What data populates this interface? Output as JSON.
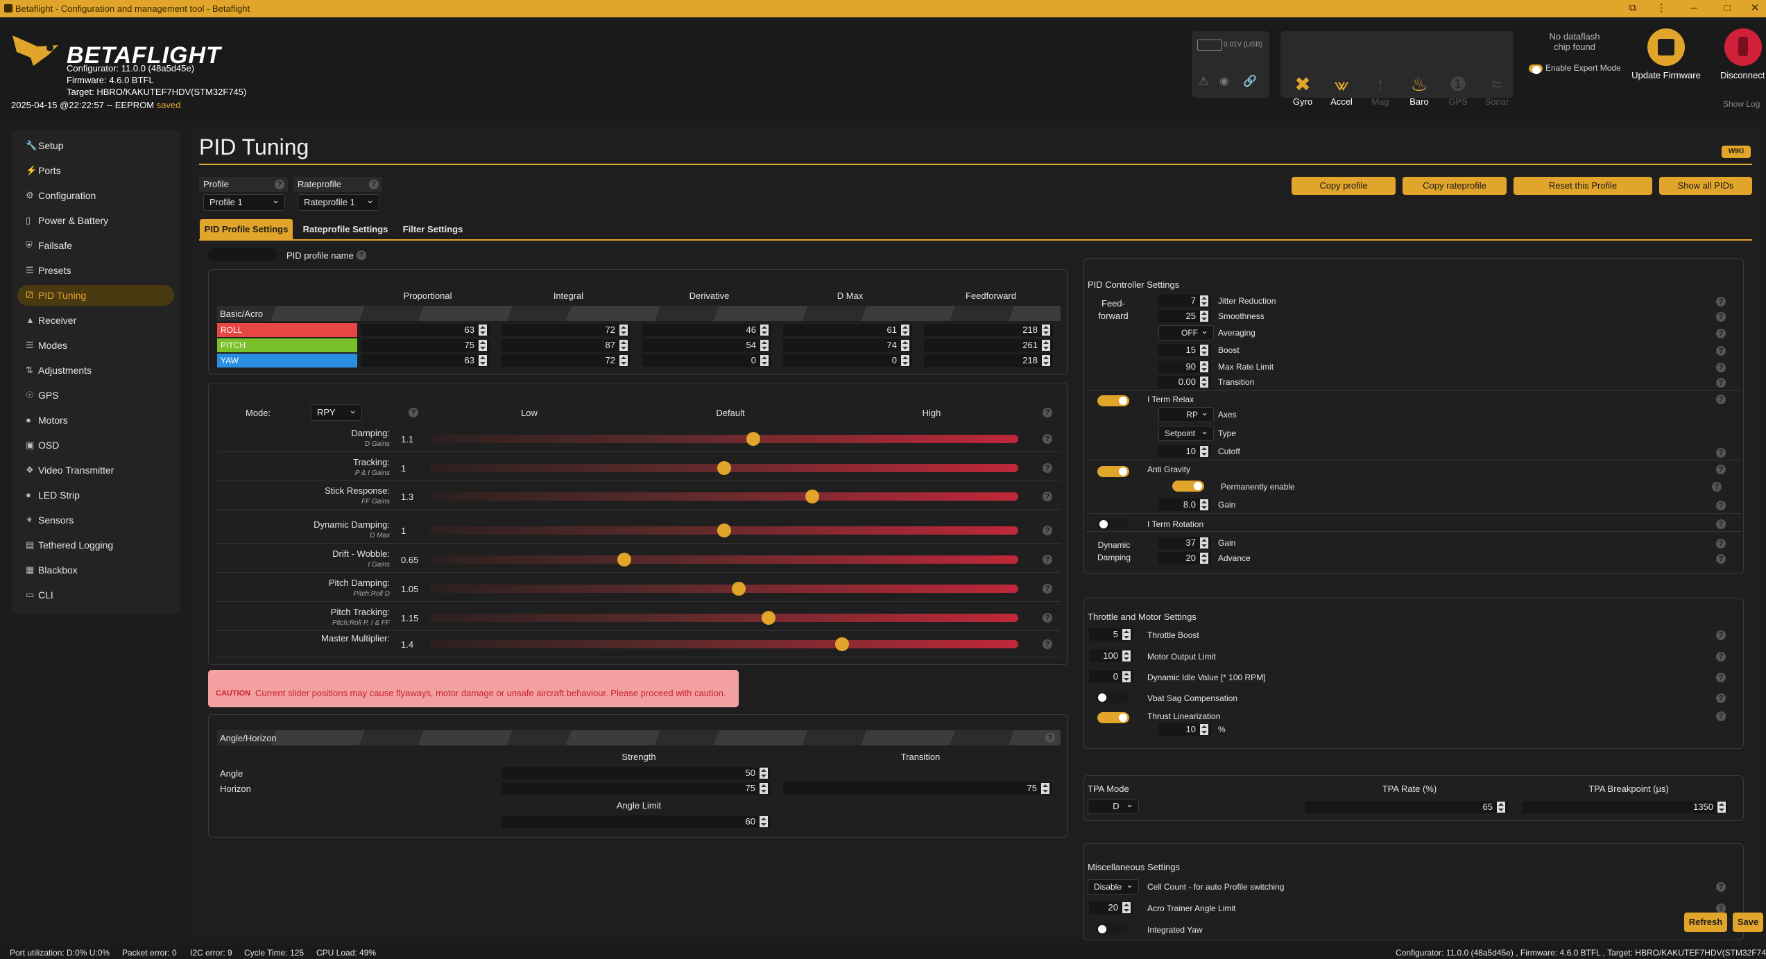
{
  "window": {
    "title": "Betaflight - Configuration and management tool - Betaflight"
  },
  "header": {
    "logo": "BETAFLIGHT",
    "configurator": "Configurator: 11.0.0 (48a5d45e)",
    "firmware": "Firmware: 4.6.0 BTFL",
    "target": "Target: HBRO/KAKUTEF7HDV(STM32F745)",
    "datetime": "2025-04-15 @22:22:57 -- EEPROM",
    "saved": "saved",
    "battery": "0.01V (USB)",
    "sensors": [
      {
        "name": "Gyro",
        "icon": "gyro-icon",
        "active": true
      },
      {
        "name": "Accel",
        "icon": "accel-icon",
        "active": true
      },
      {
        "name": "Mag",
        "icon": "mag-icon",
        "active": false
      },
      {
        "name": "Baro",
        "icon": "baro-icon",
        "active": true
      },
      {
        "name": "GPS",
        "icon": "gps-icon",
        "active": false
      },
      {
        "name": "Sonar",
        "icon": "sonar-icon",
        "active": false
      }
    ],
    "dataflash": "No dataflash chip found",
    "expert_mode": "Enable Expert Mode",
    "update_firmware": "Update Firmware",
    "disconnect": "Disconnect",
    "show_log": "Show Log"
  },
  "sidebar": {
    "items": [
      {
        "label": "Setup",
        "icon": "wrench-icon"
      },
      {
        "label": "Ports",
        "icon": "plug-icon"
      },
      {
        "label": "Configuration",
        "icon": "gear-icon"
      },
      {
        "label": "Power & Battery",
        "icon": "battery-icon"
      },
      {
        "label": "Failsafe",
        "icon": "shield-icon"
      },
      {
        "label": "Presets",
        "icon": "presets-icon"
      },
      {
        "label": "PID Tuning",
        "icon": "pid-icon",
        "active": true
      },
      {
        "label": "Receiver",
        "icon": "receiver-icon"
      },
      {
        "label": "Modes",
        "icon": "modes-icon"
      },
      {
        "label": "Adjustments",
        "icon": "adjust-icon"
      },
      {
        "label": "GPS",
        "icon": "gps-icon"
      },
      {
        "label": "Motors",
        "icon": "motor-icon"
      },
      {
        "label": "OSD",
        "icon": "osd-icon"
      },
      {
        "label": "Video Transmitter",
        "icon": "vtx-icon"
      },
      {
        "label": "LED Strip",
        "icon": "led-icon"
      },
      {
        "label": "Sensors",
        "icon": "sensors-icon"
      },
      {
        "label": "Tethered Logging",
        "icon": "log-icon"
      },
      {
        "label": "Blackbox",
        "icon": "blackbox-icon"
      },
      {
        "label": "CLI",
        "icon": "cli-icon"
      }
    ]
  },
  "page": {
    "title": "PID Tuning",
    "wiki": "WIKI",
    "profile_label": "Profile",
    "profile_value": "Profile 1",
    "rateprofile_label": "Rateprofile",
    "rateprofile_value": "Rateprofile 1",
    "buttons": {
      "copy_profile": "Copy profile",
      "copy_rateprofile": "Copy rateprofile",
      "reset_profile": "Reset this Profile",
      "show_all_pids": "Show all PIDs",
      "refresh": "Refresh",
      "save": "Save"
    },
    "tabs": [
      "PID Profile Settings",
      "Rateprofile Settings",
      "Filter Settings"
    ],
    "pid_profile_name_label": "PID profile name"
  },
  "pid_table": {
    "columns": [
      "Proportional",
      "Integral",
      "Derivative",
      "D Max",
      "Feedforward"
    ],
    "section": "Basic/Acro",
    "rows": [
      {
        "axis": "ROLL",
        "color": "#e84545",
        "values": [
          "63",
          "72",
          "46",
          "61",
          "218"
        ]
      },
      {
        "axis": "PITCH",
        "color": "#7ac02a",
        "values": [
          "75",
          "87",
          "54",
          "74",
          "261"
        ]
      },
      {
        "axis": "YAW",
        "color": "#2a8ee0",
        "values": [
          "63",
          "72",
          "0",
          "0",
          "218"
        ]
      }
    ]
  },
  "sliders": {
    "mode_label": "Mode:",
    "mode_value": "RPY",
    "low": "Low",
    "default": "Default",
    "high": "High",
    "items": [
      {
        "label": "Damping:",
        "sub": "D Gains",
        "value": "1.1",
        "pos": 0.55
      },
      {
        "label": "Tracking:",
        "sub": "P & I Gains",
        "value": "1",
        "pos": 0.5
      },
      {
        "label": "Stick Response:",
        "sub": "FF Gains",
        "value": "1.3",
        "pos": 0.65
      },
      {
        "label": "Dynamic Damping:",
        "sub": "D Max",
        "value": "1",
        "pos": 0.5
      },
      {
        "label": "Drift - Wobble:",
        "sub": "I Gains",
        "value": "0.65",
        "pos": 0.33
      },
      {
        "label": "Pitch Damping:",
        "sub": "Pitch:Roll D",
        "value": "1.05",
        "pos": 0.525
      },
      {
        "label": "Pitch Tracking:",
        "sub": "Pitch:Roll P, I & FF",
        "value": "1.15",
        "pos": 0.575
      },
      {
        "label": "Master Multiplier:",
        "sub": "",
        "value": "1.4",
        "pos": 0.7
      }
    ]
  },
  "caution": {
    "label": "CAUTION",
    "text": "Current slider positions may cause flyaways, motor damage or unsafe aircraft behaviour. Please proceed with caution."
  },
  "angle_horizon": {
    "title": "Angle/Horizon",
    "strength": "Strength",
    "transition": "Transition",
    "angle_limit": "Angle Limit",
    "angle_label": "Angle",
    "angle_value": "50",
    "horizon_label": "Horizon",
    "horizon_value": "75",
    "horizon_transition": "75",
    "angle_limit_value": "60"
  },
  "pid_controller": {
    "title": "PID Controller Settings",
    "feedforward_label": "Feed-forward",
    "jitter": {
      "value": "7",
      "label": "Jitter Reduction"
    },
    "smoothness": {
      "value": "25",
      "label": "Smoothness"
    },
    "averaging": {
      "value": "OFF",
      "label": "Averaging"
    },
    "boost": {
      "value": "15",
      "label": "Boost"
    },
    "max_rate": {
      "value": "90",
      "label": "Max Rate Limit"
    },
    "transition": {
      "value": "0.00",
      "label": "Transition"
    },
    "iterm_relax": "I Term Relax",
    "axes": {
      "value": "RP",
      "label": "Axes"
    },
    "type": {
      "value": "Setpoint",
      "label": "Type"
    },
    "cutoff": {
      "value": "10",
      "label": "Cutoff"
    },
    "anti_gravity": "Anti Gravity",
    "perm_enable": "Permanently enable",
    "ag_gain": {
      "value": "8.0",
      "label": "Gain"
    },
    "iterm_rotation": "I Term Rotation",
    "dynamic_damping": "Dynamic Damping",
    "dd_gain": {
      "value": "37",
      "label": "Gain"
    },
    "dd_advance": {
      "value": "20",
      "label": "Advance"
    }
  },
  "throttle": {
    "title": "Throttle and Motor Settings",
    "boost": {
      "value": "5",
      "label": "Throttle Boost"
    },
    "output_limit": {
      "value": "100",
      "label": "Motor Output Limit"
    },
    "idle": {
      "value": "0",
      "label": "Dynamic Idle Value [* 100 RPM]"
    },
    "vbat_sag": "Vbat Sag Compensation",
    "thrust_lin": "Thrust Linearization",
    "thrust_value": "10",
    "percent": "%"
  },
  "tpa": {
    "mode_label": "TPA Mode",
    "rate_label": "TPA Rate (%)",
    "breakpoint_label": "TPA Breakpoint (µs)",
    "mode": "D",
    "rate": "65",
    "breakpoint": "1350"
  },
  "misc": {
    "title": "Miscellaneous Settings",
    "cell_count": {
      "value": "Disable",
      "label": "Cell Count - for auto Profile switching"
    },
    "acro_trainer": {
      "value": "20",
      "label": "Acro Trainer Angle Limit"
    },
    "integrated_yaw": "Integrated Yaw"
  },
  "statusbar": {
    "port": "Port utilization: D:0% U:0%",
    "packet": "Packet error: 0",
    "i2c": "I2C error: 9",
    "cycle": "Cycle Time: 125",
    "cpu": "CPU Load: 49%",
    "right": "Configurator: 11.0.0 (48a5d45e) , Firmware: 4.6.0 BTFL , Target: HBRO/KAKUTEF7HDV(STM32F74"
  },
  "colors": {
    "accent": "#e0a52a",
    "roll": "#e84545",
    "pitch": "#7ac02a",
    "yaw": "#2a8ee0",
    "caution": "#f2a0a0"
  }
}
